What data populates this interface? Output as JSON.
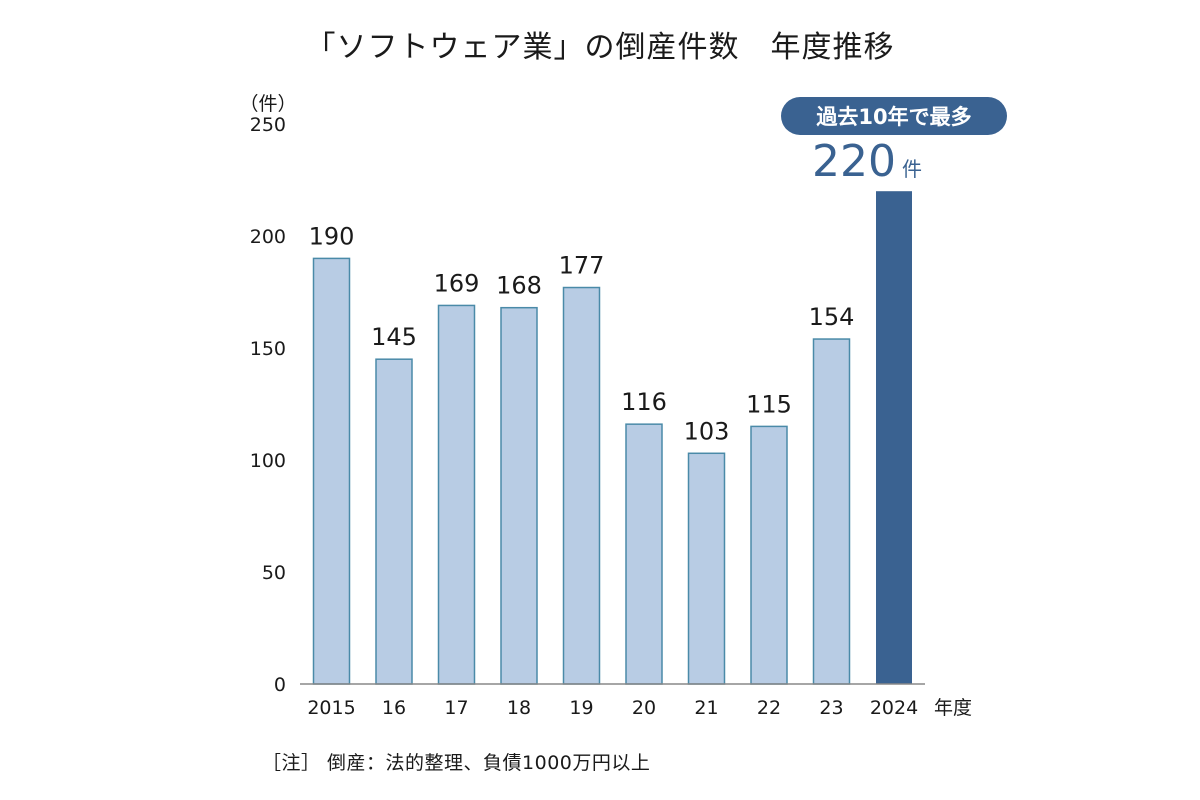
{
  "chart_data": {
    "type": "bar",
    "title": "「ソフトウェア業」の倒産件数　年度推移",
    "y_unit_label": "（件）",
    "x_unit_label": "年度",
    "categories": [
      "2015",
      "16",
      "17",
      "18",
      "19",
      "20",
      "21",
      "22",
      "23",
      "2024"
    ],
    "values": [
      190,
      145,
      169,
      168,
      177,
      116,
      103,
      115,
      154,
      220
    ],
    "ylim": [
      0,
      250
    ],
    "yticks": [
      0,
      50,
      100,
      150,
      200,
      250
    ],
    "grid": false,
    "colors": {
      "bar": "#b8cce4",
      "bar_border": "#4a8aa8",
      "highlight": "#3a6291",
      "text": "#1a1a1a",
      "axis": "#888888"
    },
    "highlight": {
      "index": 9,
      "badge": "過去10年で最多",
      "value_text": "220",
      "unit": "件"
    },
    "note": "［注］ 倒産：法的整理、負債1000万円以上"
  }
}
